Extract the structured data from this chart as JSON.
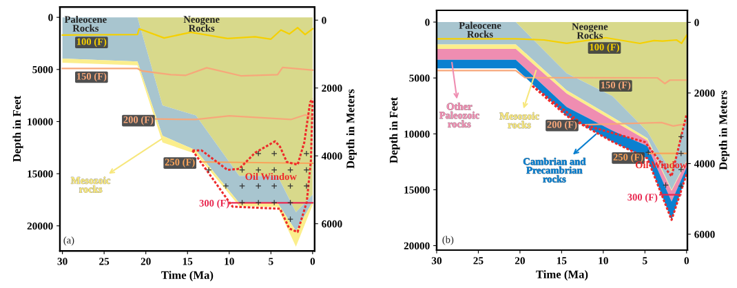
{
  "chart_data": [
    {
      "type": "area",
      "stacked": true,
      "xlabel": "Time (Ma)",
      "ylabel": "Depth in Feet",
      "y2label": "Depth in Meters",
      "xlim": [
        30.3,
        -0.25
      ],
      "xticks": [
        30,
        25,
        20,
        15,
        10,
        5,
        0
      ],
      "ylim": [
        22400,
        -1000
      ],
      "yticks": [
        0,
        5000,
        10000,
        15000,
        20000
      ],
      "y2lim": [
        6800,
        -390
      ],
      "y2ticks": [
        0,
        2000,
        4000,
        6000
      ],
      "x": [
        30,
        21,
        18,
        14,
        8.8,
        4.2,
        2,
        0
      ],
      "series": [
        {
          "color": "#d8d98b",
          "values": [
            0,
            0,
            8450,
            9400,
            15200,
            15200,
            18700,
            17000
          ]
        },
        {
          "color": "#a8c5cf",
          "values": [
            3960,
            4230,
            2910,
            3350,
            2600,
            2600,
            1800,
            700
          ]
        },
        {
          "color": "#fbee8c",
          "values": [
            390,
            370,
            640,
            350,
            300,
            400,
            1500,
            300
          ]
        },
        {
          "type": "line",
          "name": "100 (F)",
          "color": "#f5d000",
          "line_style": "solid",
          "x": [
            30,
            21,
            20.8,
            17.8,
            14.6,
            10.2,
            6.9,
            5,
            3.8,
            2.8,
            1.8,
            0.9,
            0
          ],
          "values": [
            1700,
            1650,
            1100,
            1980,
            1430,
            2030,
            1870,
            2090,
            1210,
            1600,
            990,
            1650,
            1100
          ]
        },
        {
          "type": "line",
          "name": "150 (F)",
          "color": "#f7a77a",
          "line_style": "solid",
          "x": [
            30,
            21,
            20.5,
            17,
            15.2,
            12.7,
            8.6,
            4.2,
            3.6,
            0
          ],
          "values": [
            4910,
            4910,
            5130,
            5500,
            5560,
            4840,
            5610,
            5500,
            4800,
            5070
          ]
        },
        {
          "type": "line",
          "name": "200 (F)",
          "color": "#f7a77a",
          "line_style": "solid",
          "x": [
            18.8,
            14,
            10,
            2.6,
            0.9,
            0
          ],
          "values": [
            9750,
            9800,
            9450,
            9800,
            9360,
            9570
          ]
        },
        {
          "type": "line",
          "name": "250 (F)",
          "color": "#f9a35a",
          "line_style": "solid",
          "x": [
            13.5,
            0
          ],
          "values": [
            13870,
            14000
          ]
        },
        {
          "type": "line",
          "name": "300 (F)",
          "color": "#e8274f",
          "line_style": "solid",
          "x": [
            9.7,
            0
          ],
          "values": [
            17800,
            17800
          ]
        },
        {
          "type": "line",
          "name": "Oil Window",
          "color": "#ee2a2a",
          "line_style": "dotted",
          "x": [
            14.4,
            13.3,
            10.2,
            8.8,
            6.9,
            4.5,
            3.9,
            3.1,
            1.8,
            1.0,
            0.3,
            0
          ],
          "values": [
            12770,
            12770,
            14640,
            14530,
            12990,
            11890,
            12420,
            13870,
            14140,
            12000,
            8150,
            7820
          ]
        },
        {
          "type": "line",
          "color": "#ee2a2a",
          "line_style": "dotted",
          "x": [
            14.4,
            9.6,
            3.9,
            2.8,
            1.8,
            0.7,
            0.2,
            0
          ],
          "values": [
            12770,
            18160,
            18360,
            20260,
            20590,
            17700,
            13700,
            7820
          ]
        },
        {
          "type": "scatter",
          "color": "#333333",
          "marker": "cross",
          "x": [
            6.5,
            4.6,
            0.74,
            12.45,
            8.45,
            6.5,
            4.6,
            2.67,
            0.74,
            10.4,
            8.45,
            6.5,
            4.6,
            2.67,
            0.74,
            8.45,
            6.5,
            4.6,
            2.67,
            2.67
          ],
          "values": [
            13060,
            13060,
            13060,
            14640,
            14640,
            14640,
            14640,
            14640,
            14640,
            16180,
            16180,
            16180,
            16180,
            16180,
            16180,
            17770,
            17770,
            17770,
            17770,
            19360
          ]
        }
      ],
      "annotations": [
        "Paleocene\nRocks",
        "Neogene\nRocks",
        {
          "text": "Mesozoic\nrocks",
          "x": 17.9,
          "y": 11560
        },
        "(a)"
      ]
    },
    {
      "type": "area",
      "stacked": true,
      "xlabel": "Time (Ma)",
      "ylabel": "Depth in Feet",
      "y2label": "Depth in Meters",
      "xlim": [
        30,
        -0.1
      ],
      "xticks": [
        30,
        25,
        20,
        15,
        10,
        5,
        0
      ],
      "ylim": [
        20400,
        -1050
      ],
      "yticks": [
        0,
        5000,
        10000,
        15000,
        20000
      ],
      "y2lim": [
        6450,
        -340
      ],
      "y2ticks": [
        0,
        2000,
        4000,
        6000
      ],
      "x": [
        30,
        20.5,
        14.4,
        8.9,
        4.7,
        1.8,
        0
      ],
      "series": [
        {
          "color": "#d8d98b",
          "values": [
            0,
            0,
            4580,
            6630,
            9800,
            13500,
            8300
          ]
        },
        {
          "color": "#a8c5cf",
          "values": [
            2000,
            2000,
            1520,
            1870,
            600,
            1500,
            4100
          ]
        },
        {
          "color": "#fbee8c",
          "values": [
            400,
            400,
            300,
            300,
            200,
            100,
            100
          ]
        },
        {
          "color": "#ef8db1",
          "values": [
            970,
            970,
            1200,
            900,
            500,
            950,
            500
          ]
        },
        {
          "color": "#0b80d0",
          "values": [
            780,
            780,
            800,
            1000,
            1100,
            1650,
            600
          ]
        },
        {
          "type": "line",
          "name": "100 (F)",
          "color": "#f5d000",
          "line_style": "solid",
          "x": [
            30,
            20.5,
            17.1,
            14.4,
            9.7,
            5.6,
            3.9,
            2.9,
            1.2,
            0.6,
            0
          ],
          "values": [
            1500,
            1500,
            1600,
            1900,
            1400,
            1910,
            1650,
            1700,
            1600,
            1900,
            1190
          ]
        },
        {
          "type": "line",
          "name": "150 (F)",
          "color": "#f7a77a",
          "line_style": "solid",
          "x": [
            30,
            20.5,
            19.4,
            3.5,
            2.6,
            2.0,
            0
          ],
          "values": [
            4330,
            4330,
            4970,
            4990,
            5500,
            5190,
            5190
          ]
        },
        {
          "type": "line",
          "name": "200 (F)",
          "color": "#f7a77a",
          "line_style": "solid",
          "x": [
            12.4,
            3.0,
            1.6,
            0
          ],
          "values": [
            9190,
            8990,
            9300,
            9090
          ]
        },
        {
          "type": "line",
          "name": "250 (F)",
          "color": "#f9a35a",
          "line_style": "solid",
          "x": [
            4.6,
            0
          ],
          "values": [
            11750,
            11750
          ]
        },
        {
          "type": "line",
          "name": "300 (F)",
          "color": "#e8274f",
          "line_style": "solid",
          "x": [
            3.2,
            0.7
          ],
          "values": [
            15440,
            15440
          ]
        },
        {
          "type": "line",
          "name": "Oil Window",
          "color": "#ee2a2a",
          "line_style": "dotted",
          "x": [
            18.5,
            12.4,
            5.0,
            1.8,
            0
          ],
          "values": [
            5710,
            9190,
            10730,
            13800,
            8270
          ]
        },
        {
          "type": "line",
          "color": "#ee2a2a",
          "line_style": "dotted",
          "x": [
            18.5,
            14.4,
            8.9,
            4.7,
            1.8,
            0
          ],
          "values": [
            5710,
            8400,
            10700,
            12200,
            17700,
            13600
          ]
        },
        {
          "type": "scatter",
          "color": "#333333",
          "marker": "cross",
          "x": [
            4.6,
            2.5,
            0.66,
            0.66,
            0.66,
            0.66
          ],
          "values": [
            11660,
            14580,
            10260,
            11750,
            13190,
            14670
          ]
        }
      ],
      "annotations": [
        "Paleocene\nRocks",
        "Neogene\nRocks",
        {
          "text": "Other\nPaleozoic\nrocks",
          "x": 28.2,
          "y": 3450
        },
        {
          "text": "Mesozoic\nrocks",
          "x": 18.0,
          "y": 4170
        },
        {
          "text": "Cambrian and\nPrecambrian\nrocks",
          "x": 10.7,
          "y": 9910
        },
        "(b)"
      ]
    }
  ]
}
